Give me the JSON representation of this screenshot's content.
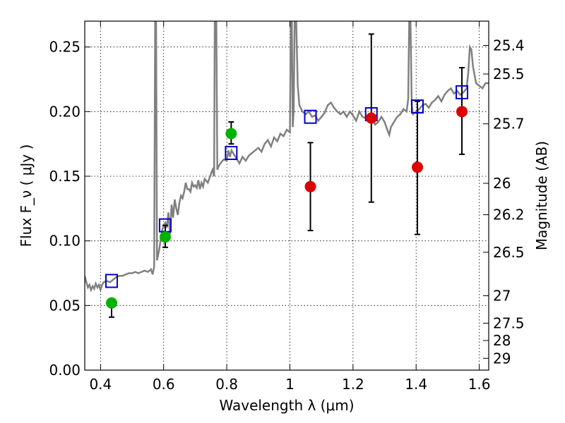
{
  "chart_data": {
    "type": "scatter",
    "xlabel": "Wavelength  λ (μm)",
    "ylabel": "Flux  F_ν  ( μJy )",
    "ylabel_right": "Magnitude (AB)",
    "xlim": [
      0.35,
      1.63
    ],
    "ylim": [
      0.0,
      0.27
    ],
    "grid": true,
    "x_ticks": [
      0.4,
      0.6,
      0.8,
      1.0,
      1.2,
      1.4,
      1.6
    ],
    "x_tick_labels": [
      "0.4",
      "0.6",
      "0.8",
      "1",
      "1.2",
      "1.4",
      "1.6"
    ],
    "y_ticks": [
      0.0,
      0.05,
      0.1,
      0.15,
      0.2,
      0.25
    ],
    "y_tick_labels": [
      "0.00",
      "0.05",
      "0.10",
      "0.15",
      "0.20",
      "0.25"
    ],
    "right_ticks": [
      {
        "mag": 25.4,
        "label": "25.4"
      },
      {
        "mag": 25.5,
        "label": "25.5"
      },
      {
        "mag": 25.7,
        "label": "25.7"
      },
      {
        "mag": 26,
        "label": "26"
      },
      {
        "mag": 26.2,
        "label": "26.2"
      },
      {
        "mag": 26.5,
        "label": "26.5"
      },
      {
        "mag": 27,
        "label": "27"
      },
      {
        "mag": 27.5,
        "label": "27.5"
      },
      {
        "mag": 28,
        "label": "28"
      },
      {
        "mag": 29,
        "label": "29"
      }
    ],
    "series": [
      {
        "name": "model-spectrum",
        "kind": "line",
        "color": "#808080",
        "points": [
          [
            0.35,
            0.073
          ],
          [
            0.355,
            0.068
          ],
          [
            0.36,
            0.064
          ],
          [
            0.365,
            0.066
          ],
          [
            0.37,
            0.062
          ],
          [
            0.375,
            0.065
          ],
          [
            0.38,
            0.063
          ],
          [
            0.385,
            0.067
          ],
          [
            0.39,
            0.064
          ],
          [
            0.395,
            0.066
          ],
          [
            0.4,
            0.062
          ],
          [
            0.405,
            0.066
          ],
          [
            0.41,
            0.068
          ],
          [
            0.42,
            0.069
          ],
          [
            0.43,
            0.068
          ],
          [
            0.44,
            0.07
          ],
          [
            0.45,
            0.072
          ],
          [
            0.46,
            0.073
          ],
          [
            0.47,
            0.073
          ],
          [
            0.48,
            0.074
          ],
          [
            0.49,
            0.075
          ],
          [
            0.5,
            0.075
          ],
          [
            0.51,
            0.076
          ],
          [
            0.52,
            0.075
          ],
          [
            0.53,
            0.076
          ],
          [
            0.54,
            0.077
          ],
          [
            0.55,
            0.076
          ],
          [
            0.56,
            0.078
          ],
          [
            0.565,
            0.074
          ],
          [
            0.57,
            0.08
          ],
          [
            0.573,
            0.27
          ],
          [
            0.576,
            0.27
          ],
          [
            0.579,
            0.085
          ],
          [
            0.585,
            0.092
          ],
          [
            0.59,
            0.1
          ],
          [
            0.595,
            0.108
          ],
          [
            0.6,
            0.112
          ],
          [
            0.605,
            0.114
          ],
          [
            0.61,
            0.11
          ],
          [
            0.615,
            0.122
          ],
          [
            0.62,
            0.105
          ],
          [
            0.625,
            0.128
          ],
          [
            0.63,
            0.118
          ],
          [
            0.635,
            0.132
          ],
          [
            0.64,
            0.125
          ],
          [
            0.645,
            0.12
          ],
          [
            0.65,
            0.13
          ],
          [
            0.655,
            0.135
          ],
          [
            0.66,
            0.133
          ],
          [
            0.665,
            0.138
          ],
          [
            0.67,
            0.145
          ],
          [
            0.675,
            0.14
          ],
          [
            0.68,
            0.14
          ],
          [
            0.685,
            0.138
          ],
          [
            0.69,
            0.145
          ],
          [
            0.695,
            0.142
          ],
          [
            0.7,
            0.143
          ],
          [
            0.705,
            0.141
          ],
          [
            0.71,
            0.147
          ],
          [
            0.715,
            0.14
          ],
          [
            0.72,
            0.145
          ],
          [
            0.725,
            0.142
          ],
          [
            0.73,
            0.148
          ],
          [
            0.74,
            0.145
          ],
          [
            0.75,
            0.152
          ],
          [
            0.755,
            0.155
          ],
          [
            0.76,
            0.15
          ],
          [
            0.762,
            0.27
          ],
          [
            0.767,
            0.27
          ],
          [
            0.77,
            0.155
          ],
          [
            0.775,
            0.158
          ],
          [
            0.78,
            0.16
          ],
          [
            0.79,
            0.163
          ],
          [
            0.8,
            0.162
          ],
          [
            0.805,
            0.17
          ],
          [
            0.81,
            0.165
          ],
          [
            0.815,
            0.17
          ],
          [
            0.82,
            0.168
          ],
          [
            0.83,
            0.164
          ],
          [
            0.84,
            0.16
          ],
          [
            0.85,
            0.165
          ],
          [
            0.86,
            0.162
          ],
          [
            0.87,
            0.166
          ],
          [
            0.88,
            0.168
          ],
          [
            0.89,
            0.17
          ],
          [
            0.9,
            0.172
          ],
          [
            0.91,
            0.169
          ],
          [
            0.92,
            0.175
          ],
          [
            0.93,
            0.178
          ],
          [
            0.94,
            0.173
          ],
          [
            0.95,
            0.18
          ],
          [
            0.96,
            0.177
          ],
          [
            0.97,
            0.183
          ],
          [
            0.98,
            0.181
          ],
          [
            0.99,
            0.186
          ],
          [
            1.0,
            0.184
          ],
          [
            1.003,
            0.27
          ],
          [
            1.006,
            0.27
          ],
          [
            1.009,
            0.188
          ],
          [
            1.012,
            0.2
          ],
          [
            1.015,
            0.27
          ],
          [
            1.02,
            0.27
          ],
          [
            1.025,
            0.22
          ],
          [
            1.03,
            0.205
          ],
          [
            1.04,
            0.2
          ],
          [
            1.05,
            0.198
          ],
          [
            1.06,
            0.2
          ],
          [
            1.07,
            0.196
          ],
          [
            1.08,
            0.197
          ],
          [
            1.09,
            0.193
          ],
          [
            1.1,
            0.196
          ],
          [
            1.11,
            0.199
          ],
          [
            1.12,
            0.205
          ],
          [
            1.13,
            0.207
          ],
          [
            1.14,
            0.203
          ],
          [
            1.15,
            0.2
          ],
          [
            1.16,
            0.198
          ],
          [
            1.17,
            0.2
          ],
          [
            1.18,
            0.196
          ],
          [
            1.19,
            0.2
          ],
          [
            1.2,
            0.197
          ],
          [
            1.21,
            0.193
          ],
          [
            1.22,
            0.2
          ],
          [
            1.23,
            0.196
          ],
          [
            1.24,
            0.195
          ],
          [
            1.25,
            0.198
          ],
          [
            1.26,
            0.194
          ],
          [
            1.27,
            0.19
          ],
          [
            1.28,
            0.192
          ],
          [
            1.29,
            0.196
          ],
          [
            1.3,
            0.192
          ],
          [
            1.31,
            0.185
          ],
          [
            1.315,
            0.182
          ],
          [
            1.32,
            0.188
          ],
          [
            1.33,
            0.192
          ],
          [
            1.34,
            0.196
          ],
          [
            1.35,
            0.198
          ],
          [
            1.36,
            0.202
          ],
          [
            1.37,
            0.2
          ],
          [
            1.375,
            0.21
          ],
          [
            1.378,
            0.27
          ],
          [
            1.382,
            0.27
          ],
          [
            1.386,
            0.205
          ],
          [
            1.39,
            0.198
          ],
          [
            1.4,
            0.2
          ],
          [
            1.41,
            0.202
          ],
          [
            1.42,
            0.205
          ],
          [
            1.43,
            0.206
          ],
          [
            1.44,
            0.203
          ],
          [
            1.45,
            0.207
          ],
          [
            1.46,
            0.209
          ],
          [
            1.47,
            0.212
          ],
          [
            1.48,
            0.208
          ],
          [
            1.49,
            0.213
          ],
          [
            1.5,
            0.216
          ],
          [
            1.51,
            0.218
          ],
          [
            1.52,
            0.214
          ],
          [
            1.53,
            0.216
          ],
          [
            1.54,
            0.213
          ],
          [
            1.55,
            0.215
          ],
          [
            1.56,
            0.218
          ],
          [
            1.565,
            0.23
          ],
          [
            1.57,
            0.25
          ],
          [
            1.575,
            0.248
          ],
          [
            1.58,
            0.235
          ],
          [
            1.59,
            0.222
          ],
          [
            1.6,
            0.22
          ],
          [
            1.61,
            0.218
          ],
          [
            1.62,
            0.222
          ],
          [
            1.63,
            0.222
          ]
        ]
      },
      {
        "name": "model-photometry",
        "kind": "open-square",
        "color": "#0000cc",
        "points": [
          [
            0.435,
            0.069
          ],
          [
            0.605,
            0.112
          ],
          [
            0.814,
            0.168
          ],
          [
            1.065,
            0.196
          ],
          [
            1.258,
            0.198
          ],
          [
            1.404,
            0.204
          ],
          [
            1.545,
            0.215
          ]
        ]
      },
      {
        "name": "observed-detections",
        "kind": "filled-circle",
        "color": "#00b200",
        "points": [
          {
            "x": 0.435,
            "y": 0.052,
            "lo": 0.041,
            "hi": 0.052
          },
          {
            "x": 0.605,
            "y": 0.103,
            "lo": 0.095,
            "hi": 0.112
          },
          {
            "x": 0.814,
            "y": 0.183,
            "lo": 0.175,
            "hi": 0.192
          }
        ]
      },
      {
        "name": "observed-limits",
        "kind": "filled-circle",
        "color": "#dd0000",
        "points": [
          {
            "x": 1.065,
            "y": 0.142,
            "lo": 0.108,
            "hi": 0.176
          },
          {
            "x": 1.258,
            "y": 0.195,
            "lo": 0.13,
            "hi": 0.26
          },
          {
            "x": 1.404,
            "y": 0.157,
            "lo": 0.105,
            "hi": 0.208
          },
          {
            "x": 1.545,
            "y": 0.2,
            "lo": 0.167,
            "hi": 0.234
          }
        ]
      }
    ]
  }
}
